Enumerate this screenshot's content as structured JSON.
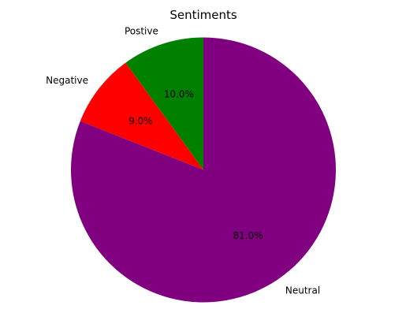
{
  "chart_data": {
    "type": "pie",
    "title": "Sentiments",
    "start_angle_deg": 90,
    "direction": "counterclockwise",
    "slices": [
      {
        "label": "Postive",
        "value": 10.0,
        "pct_label": "10.0%",
        "color": "#008000"
      },
      {
        "label": "Negative",
        "value": 9.0,
        "pct_label": "9.0%",
        "color": "#ff0000"
      },
      {
        "label": "Neutral",
        "value": 81.0,
        "pct_label": "81.0%",
        "color": "#800080"
      }
    ]
  }
}
